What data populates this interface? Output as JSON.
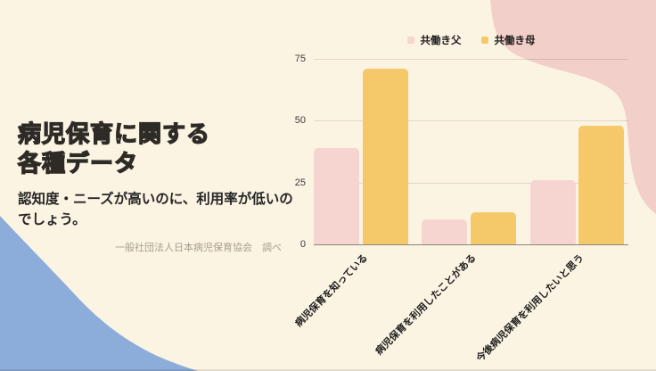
{
  "page": {
    "background_color": "#fcf4e3"
  },
  "left_panel": {
    "title_line1": "病児保育に関する",
    "title_line2": "各種データ",
    "subtitle": "認知度・ニーズが高いのに、利用率が低いのでしょう。",
    "source": "一般社団法人日本病児保育協会　調べ"
  },
  "chart_data": {
    "type": "bar",
    "title": "",
    "xlabel": "",
    "ylabel": "",
    "categories": [
      "病児保育を知っている",
      "病児保育を利用したことがある",
      "今後病児保育を利用したいと思う"
    ],
    "series": [
      {
        "name": "共働き父",
        "color": "#f6d5d1",
        "values": [
          39,
          10,
          26
        ]
      },
      {
        "name": "共働き母",
        "color": "#f5c969",
        "values": [
          71,
          13,
          48
        ]
      }
    ],
    "ylim": [
      0,
      75
    ],
    "yticks": [
      0,
      25,
      50,
      75
    ],
    "grid": true,
    "legend_position": "top-center"
  },
  "decor": {
    "pink_blob_color": "#f3cfca",
    "blue_blob_color": "#8cadd9",
    "axis_color": "#8b8577"
  }
}
